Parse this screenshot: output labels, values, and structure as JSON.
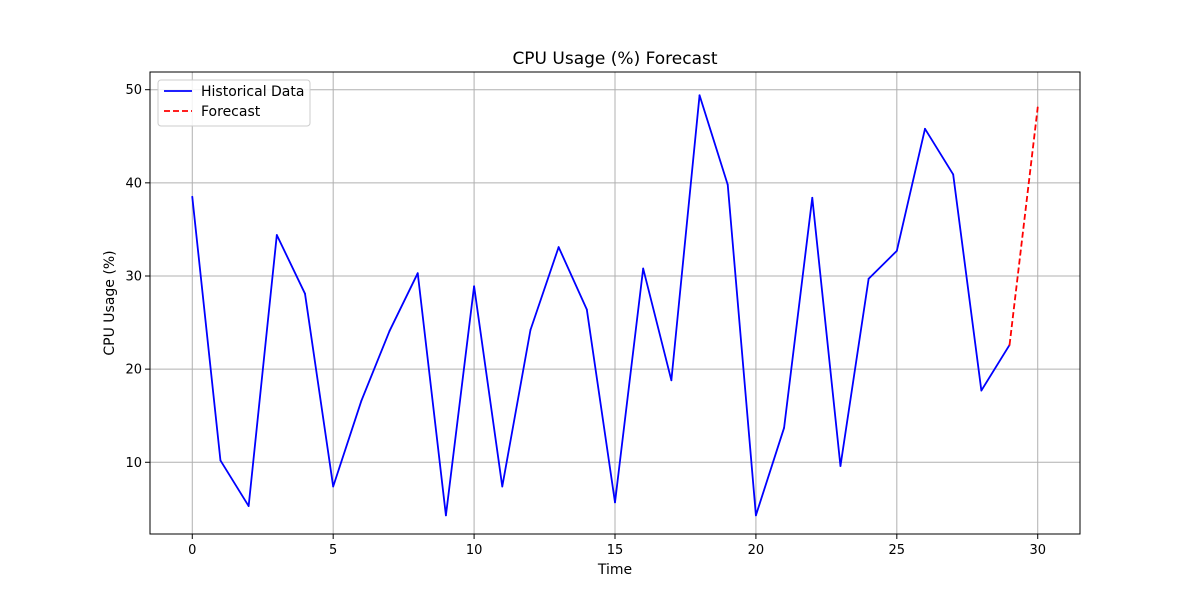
{
  "chart_data": {
    "type": "line",
    "title": "CPU Usage (%) Forecast",
    "xlabel": "Time",
    "ylabel": "CPU Usage (%)",
    "xlim": [
      -1.5,
      31.5
    ],
    "ylim": [
      2.3,
      51.9
    ],
    "xticks": [
      0,
      5,
      10,
      15,
      20,
      25,
      30
    ],
    "yticks": [
      10,
      20,
      30,
      40,
      50
    ],
    "grid": true,
    "legend_position": "top-left",
    "series": [
      {
        "name": "Historical Data",
        "color": "#0000ff",
        "style": "solid",
        "x": [
          0,
          1,
          2,
          3,
          4,
          5,
          6,
          7,
          8,
          9,
          10,
          11,
          12,
          13,
          14,
          15,
          16,
          17,
          18,
          19,
          20,
          21,
          22,
          23,
          24,
          25,
          26,
          27,
          28,
          29
        ],
        "values": [
          38.5,
          10.2,
          5.3,
          34.4,
          28.1,
          7.4,
          16.6,
          24.1,
          30.3,
          4.3,
          28.9,
          7.4,
          24.2,
          33.1,
          26.4,
          5.7,
          30.8,
          18.8,
          49.4,
          39.8,
          4.3,
          13.7,
          38.4,
          9.6,
          29.7,
          32.7,
          45.8,
          40.9,
          17.7,
          22.6
        ]
      },
      {
        "name": "Forecast",
        "color": "#ff0000",
        "style": "dashed",
        "x": [
          29,
          30
        ],
        "values": [
          22.6,
          48.1
        ]
      }
    ]
  }
}
